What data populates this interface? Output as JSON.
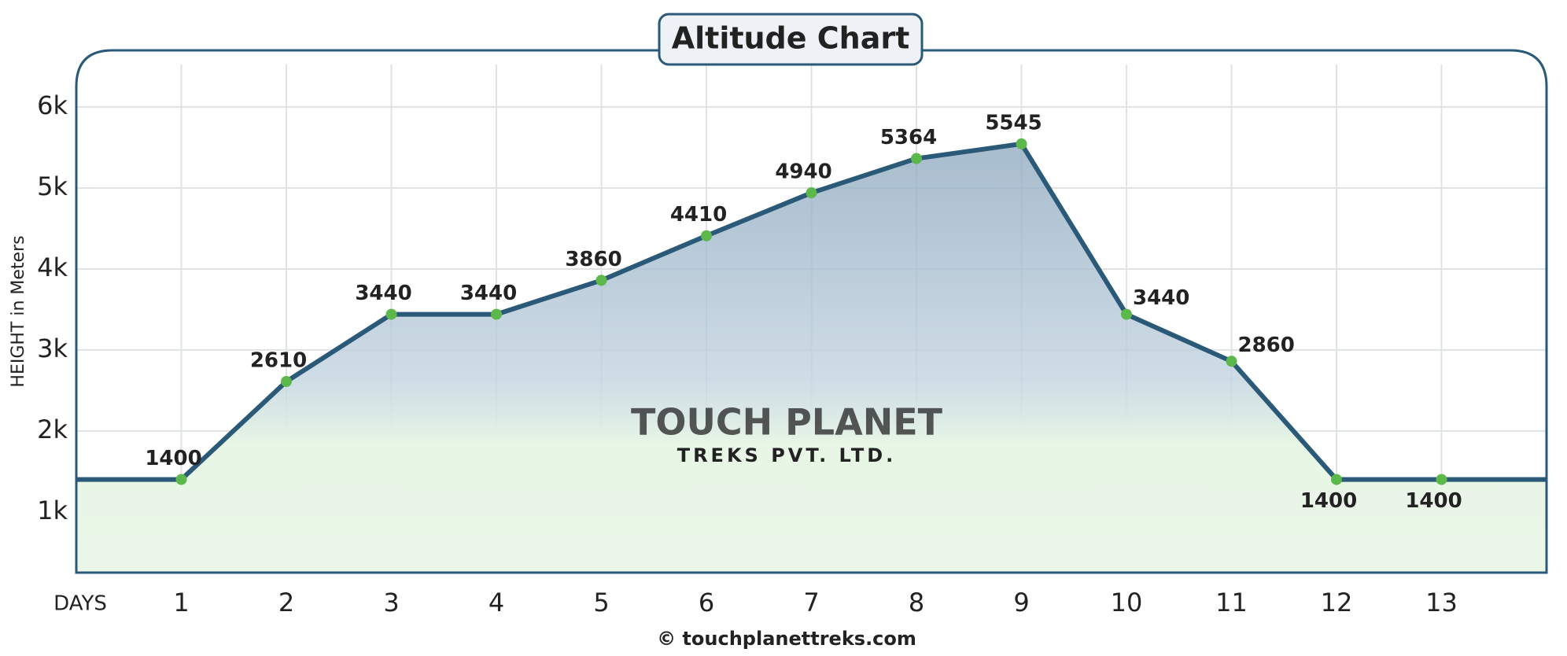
{
  "chart_data": {
    "type": "line",
    "title": "Altitude Chart",
    "x_label": "DAYS",
    "y_label": "HEIGHT in Meters",
    "x": [
      1,
      2,
      3,
      4,
      5,
      6,
      7,
      8,
      9,
      10,
      11,
      12,
      13
    ],
    "xlim": [
      0,
      14
    ],
    "xticks": [
      1,
      2,
      3,
      4,
      5,
      6,
      7,
      8,
      9,
      10,
      11,
      12,
      13
    ],
    "series": [
      {
        "color": "#2b5a78",
        "values": [
          1400,
          2610,
          3440,
          3440,
          3860,
          4410,
          4940,
          5364,
          5545,
          3440,
          2860,
          1400,
          1400
        ]
      }
    ],
    "ylim": [
      250,
      6700
    ],
    "yticks": [
      {
        "value": 1000,
        "label": "1k"
      },
      {
        "value": 2000,
        "label": "2k"
      },
      {
        "value": 3000,
        "label": "3k"
      },
      {
        "value": 4000,
        "label": "4k"
      },
      {
        "value": 5000,
        "label": "5k"
      },
      {
        "value": 6000,
        "label": "6k"
      }
    ],
    "grid": true,
    "marker_color": "#5cb84a",
    "watermark": [
      "TOUCH PLANET",
      "TREKS PVT. LTD."
    ],
    "footer": "© touchplanettreks.com"
  }
}
